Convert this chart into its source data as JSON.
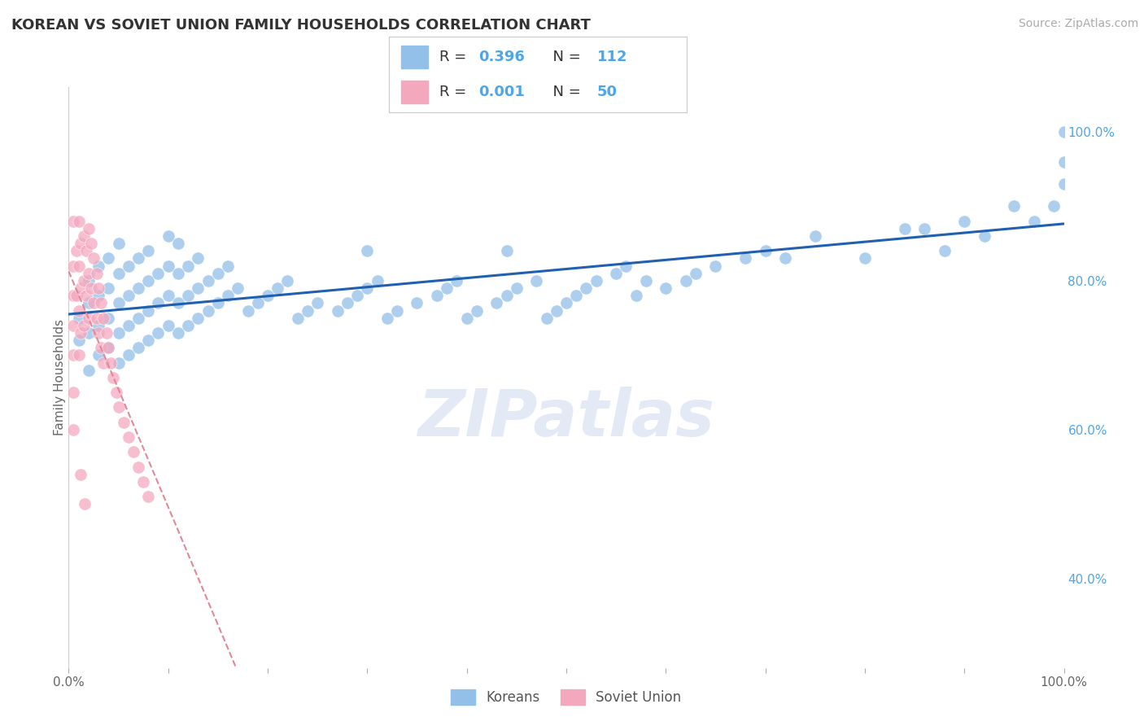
{
  "title": "KOREAN VS SOVIET UNION FAMILY HOUSEHOLDS CORRELATION CHART",
  "source_text": "Source: ZipAtlas.com",
  "ylabel": "Family Households",
  "legend_labels": [
    "Koreans",
    "Soviet Union"
  ],
  "korean_R": 0.396,
  "korean_N": 112,
  "soviet_R": 0.001,
  "soviet_N": 50,
  "xlim": [
    0.0,
    1.0
  ],
  "ylim": [
    0.28,
    1.06
  ],
  "ytick_positions_right": [
    1.0,
    0.8,
    0.6,
    0.4
  ],
  "ytick_labels_right": [
    "100.0%",
    "80.0%",
    "60.0%",
    "40.0%"
  ],
  "korean_color": "#92c0e8",
  "soviet_color": "#f4a8be",
  "korean_line_color": "#2060b0",
  "soviet_line_color": "#e08898",
  "background_color": "#ffffff",
  "grid_color": "#d0daea",
  "watermark_color": "#ccd8ee",
  "title_color": "#333333",
  "title_fontsize": 13,
  "source_fontsize": 10,
  "legend_value_color": "#4da6e8",
  "right_axis_color": "#4da6e8",
  "korean_scatter_x": [
    0.01,
    0.01,
    0.02,
    0.02,
    0.02,
    0.02,
    0.03,
    0.03,
    0.03,
    0.03,
    0.04,
    0.04,
    0.04,
    0.04,
    0.05,
    0.05,
    0.05,
    0.05,
    0.05,
    0.06,
    0.06,
    0.06,
    0.06,
    0.07,
    0.07,
    0.07,
    0.07,
    0.08,
    0.08,
    0.08,
    0.08,
    0.09,
    0.09,
    0.09,
    0.1,
    0.1,
    0.1,
    0.1,
    0.11,
    0.11,
    0.11,
    0.11,
    0.12,
    0.12,
    0.12,
    0.13,
    0.13,
    0.13,
    0.14,
    0.14,
    0.15,
    0.15,
    0.16,
    0.16,
    0.17,
    0.18,
    0.19,
    0.2,
    0.21,
    0.22,
    0.23,
    0.24,
    0.25,
    0.27,
    0.28,
    0.29,
    0.3,
    0.31,
    0.32,
    0.33,
    0.35,
    0.37,
    0.38,
    0.39,
    0.4,
    0.41,
    0.43,
    0.44,
    0.45,
    0.47,
    0.48,
    0.49,
    0.5,
    0.51,
    0.52,
    0.53,
    0.55,
    0.56,
    0.57,
    0.58,
    0.6,
    0.62,
    0.63,
    0.65,
    0.68,
    0.7,
    0.72,
    0.75,
    0.8,
    0.84,
    0.86,
    0.88,
    0.9,
    0.92,
    0.95,
    0.97,
    0.99,
    1.0,
    1.0,
    1.0,
    0.3,
    0.44
  ],
  "korean_scatter_y": [
    0.72,
    0.75,
    0.68,
    0.73,
    0.77,
    0.8,
    0.7,
    0.74,
    0.78,
    0.82,
    0.71,
    0.75,
    0.79,
    0.83,
    0.69,
    0.73,
    0.77,
    0.81,
    0.85,
    0.7,
    0.74,
    0.78,
    0.82,
    0.71,
    0.75,
    0.79,
    0.83,
    0.72,
    0.76,
    0.8,
    0.84,
    0.73,
    0.77,
    0.81,
    0.74,
    0.78,
    0.82,
    0.86,
    0.73,
    0.77,
    0.81,
    0.85,
    0.74,
    0.78,
    0.82,
    0.75,
    0.79,
    0.83,
    0.76,
    0.8,
    0.77,
    0.81,
    0.78,
    0.82,
    0.79,
    0.76,
    0.77,
    0.78,
    0.79,
    0.8,
    0.75,
    0.76,
    0.77,
    0.76,
    0.77,
    0.78,
    0.79,
    0.8,
    0.75,
    0.76,
    0.77,
    0.78,
    0.79,
    0.8,
    0.75,
    0.76,
    0.77,
    0.78,
    0.79,
    0.8,
    0.75,
    0.76,
    0.77,
    0.78,
    0.79,
    0.8,
    0.81,
    0.82,
    0.78,
    0.8,
    0.79,
    0.8,
    0.81,
    0.82,
    0.83,
    0.84,
    0.83,
    0.86,
    0.83,
    0.87,
    0.87,
    0.84,
    0.88,
    0.86,
    0.9,
    0.88,
    0.9,
    0.93,
    0.96,
    1.0,
    0.84,
    0.84
  ],
  "soviet_scatter_x": [
    0.005,
    0.005,
    0.005,
    0.005,
    0.005,
    0.005,
    0.005,
    0.008,
    0.008,
    0.01,
    0.01,
    0.01,
    0.01,
    0.012,
    0.012,
    0.012,
    0.015,
    0.015,
    0.015,
    0.018,
    0.018,
    0.02,
    0.02,
    0.02,
    0.023,
    0.023,
    0.025,
    0.025,
    0.028,
    0.028,
    0.03,
    0.03,
    0.032,
    0.032,
    0.035,
    0.035,
    0.038,
    0.04,
    0.042,
    0.045,
    0.048,
    0.05,
    0.055,
    0.06,
    0.065,
    0.07,
    0.075,
    0.08,
    0.012,
    0.016
  ],
  "soviet_scatter_y": [
    0.88,
    0.82,
    0.78,
    0.74,
    0.7,
    0.65,
    0.6,
    0.84,
    0.78,
    0.88,
    0.82,
    0.76,
    0.7,
    0.85,
    0.79,
    0.73,
    0.86,
    0.8,
    0.74,
    0.84,
    0.78,
    0.87,
    0.81,
    0.75,
    0.85,
    0.79,
    0.83,
    0.77,
    0.81,
    0.75,
    0.79,
    0.73,
    0.77,
    0.71,
    0.75,
    0.69,
    0.73,
    0.71,
    0.69,
    0.67,
    0.65,
    0.63,
    0.61,
    0.59,
    0.57,
    0.55,
    0.53,
    0.51,
    0.54,
    0.5
  ]
}
